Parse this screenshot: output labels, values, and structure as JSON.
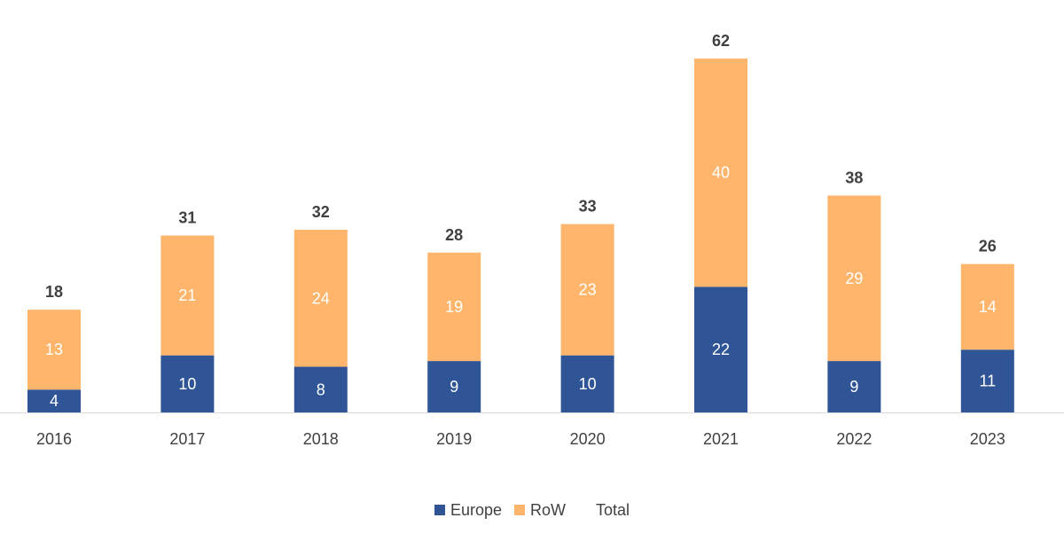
{
  "chart_data": {
    "type": "bar",
    "stacked": true,
    "categories": [
      "2016",
      "2017",
      "2018",
      "2019",
      "2020",
      "2021",
      "2022",
      "2023"
    ],
    "series": [
      {
        "name": "Europe",
        "values": [
          4,
          10,
          8,
          9,
          10,
          22,
          9,
          11
        ],
        "color": "#2F5597"
      },
      {
        "name": "RoW",
        "values": [
          13,
          21,
          24,
          19,
          23,
          40,
          29,
          14
        ],
        "color": "#FFB66C"
      }
    ],
    "totals": {
      "name": "Total",
      "values": [
        18,
        31,
        32,
        28,
        33,
        62,
        38,
        26
      ]
    },
    "title": "",
    "xlabel": "",
    "ylabel": "",
    "ylim": [
      0,
      62
    ],
    "grid": false,
    "legend_position": "bottom"
  },
  "colors": {
    "axis_line": "#D9D9D9",
    "text": "#404040",
    "segment_text": "#ffffff"
  }
}
